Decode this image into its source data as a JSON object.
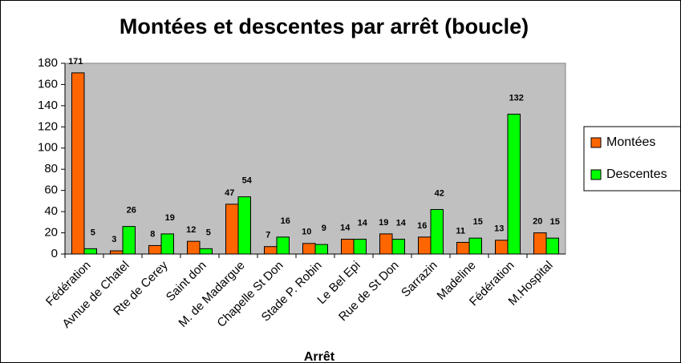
{
  "chart_data": {
    "type": "bar",
    "title": "Montées et descentes par arrêt (boucle)",
    "x_label": "Arrêt",
    "categories": [
      "Fédération",
      "Avnue de Chatel",
      "Rte de Cerey",
      "Saint don",
      "M. de Madargue",
      "Chapelle St Don",
      "Stade P. Robin",
      "Le Bel Epi",
      "Rue de St Don",
      "Sarrazin",
      "Madeline",
      "Fédération",
      "M.Hospital"
    ],
    "series": [
      {
        "name": "Montées",
        "color": "#ff6600",
        "values": [
          171,
          3,
          8,
          12,
          47,
          7,
          10,
          14,
          19,
          16,
          11,
          13,
          20
        ]
      },
      {
        "name": "Descentes",
        "color": "#00ff00",
        "values": [
          5,
          26,
          19,
          5,
          54,
          16,
          9,
          14,
          14,
          42,
          15,
          132,
          15
        ]
      }
    ],
    "ylim": [
      0,
      180
    ],
    "yticks": [
      0,
      20,
      40,
      60,
      80,
      100,
      120,
      140,
      160,
      180
    ],
    "grid": false,
    "legend": "right",
    "plot_background": "#c0c0c0"
  }
}
